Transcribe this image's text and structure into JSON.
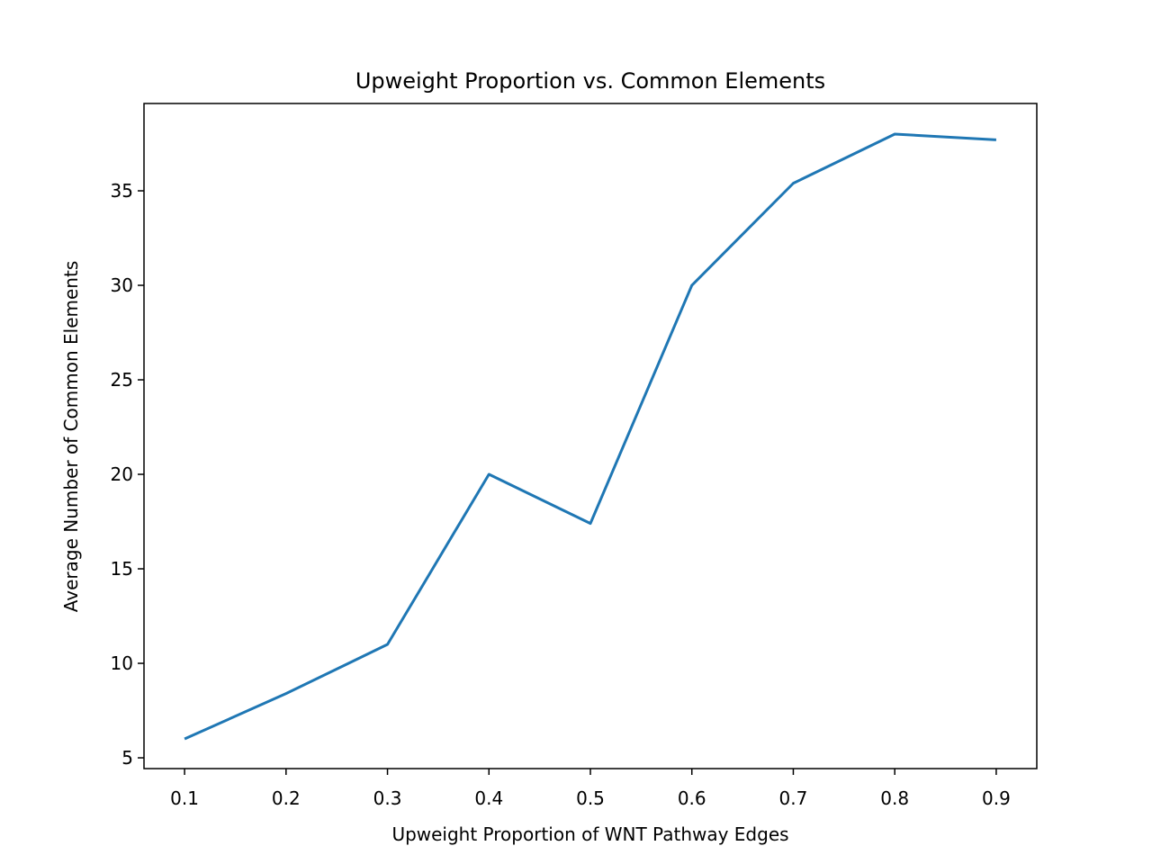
{
  "chart_data": {
    "type": "line",
    "title": "Upweight Proportion vs. Common Elements",
    "x_label": "Upweight Proportion of WNT Pathway Edges",
    "y_label": "Average Number of Common Elements",
    "x": [
      0.1,
      0.2,
      0.3,
      0.4,
      0.5,
      0.6,
      0.7,
      0.8,
      0.9
    ],
    "values": [
      6,
      8.4,
      11,
      20,
      17.4,
      30,
      35.4,
      38,
      37.7
    ],
    "color": "#1f77b4",
    "xlim": [
      0.06,
      0.94
    ],
    "xticks": [
      0.1,
      0.2,
      0.3,
      0.4,
      0.5,
      0.6,
      0.7,
      0.8,
      0.9
    ],
    "ylim": [
      4.43,
      39.62
    ],
    "yticks": [
      5,
      10,
      15,
      20,
      25,
      30,
      35
    ]
  }
}
